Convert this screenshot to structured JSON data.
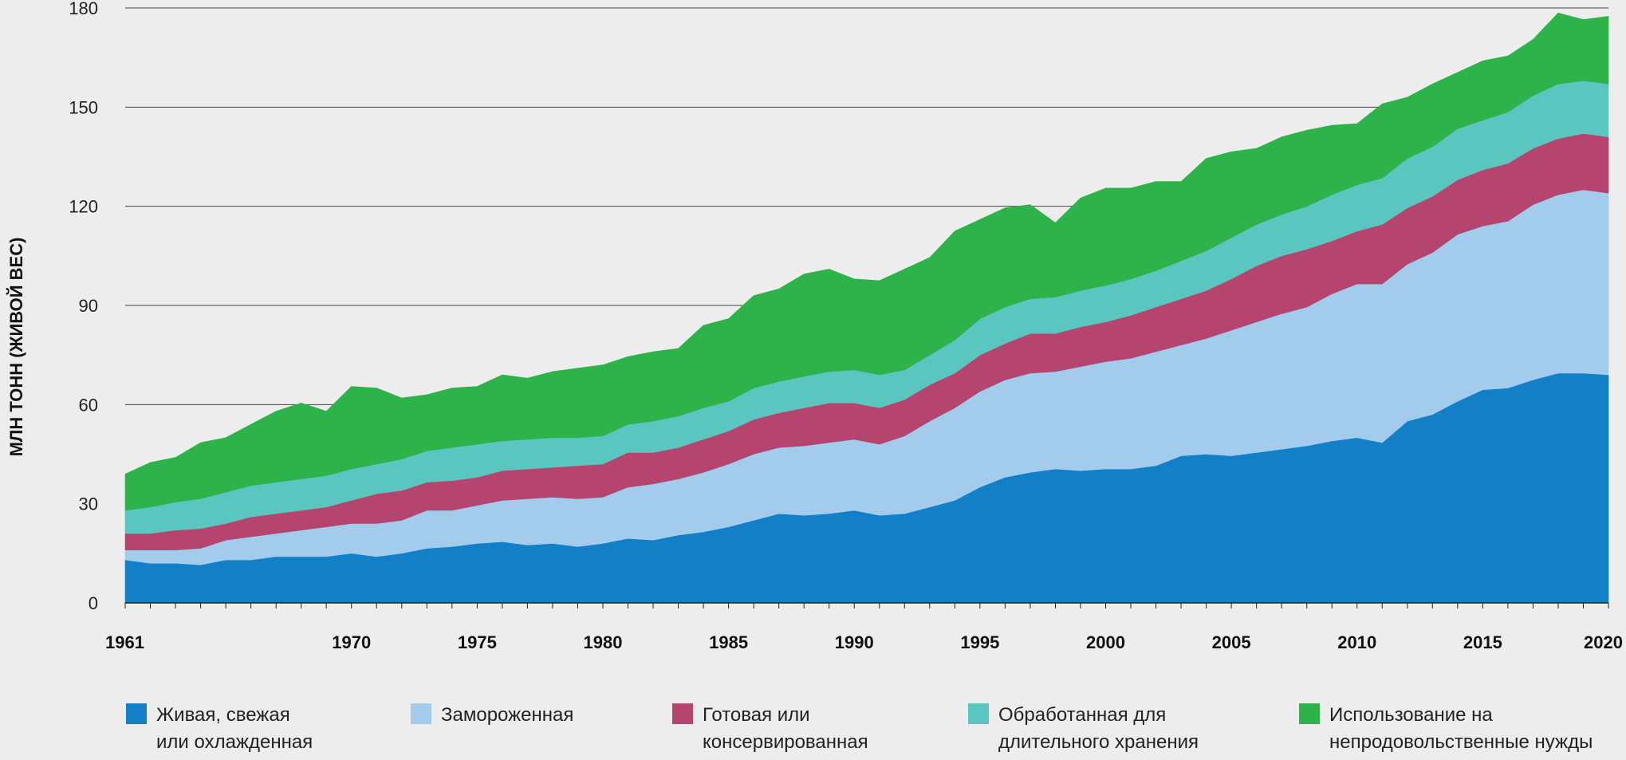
{
  "chart_data": {
    "type": "area",
    "stacked": true,
    "title": "",
    "xlabel": "",
    "ylabel": "МЛН ТОНН (ЖИВОЙ ВЕС)",
    "ylim": [
      0,
      180
    ],
    "yticks": [
      "0",
      "30",
      "60",
      "90",
      "120",
      "150",
      "180"
    ],
    "xticks": [
      "1961",
      "1970",
      "1975",
      "1980",
      "1985",
      "1990",
      "1995",
      "2000",
      "2005",
      "2010",
      "2015",
      "2020"
    ],
    "grid": true,
    "legend_position": "bottom",
    "x": [
      1961,
      1962,
      1963,
      1964,
      1965,
      1966,
      1967,
      1968,
      1969,
      1970,
      1971,
      1972,
      1973,
      1974,
      1975,
      1976,
      1977,
      1978,
      1979,
      1980,
      1981,
      1982,
      1983,
      1984,
      1985,
      1986,
      1987,
      1988,
      1989,
      1990,
      1991,
      1992,
      1993,
      1994,
      1995,
      1996,
      1997,
      1998,
      1999,
      2000,
      2001,
      2002,
      2003,
      2004,
      2005,
      2006,
      2007,
      2008,
      2009,
      2010,
      2011,
      2012,
      2013,
      2014,
      2015,
      2016,
      2017,
      2018,
      2019,
      2020
    ],
    "series": [
      {
        "name": "Живая, свежая или охлажденная",
        "legend_lines": [
          "Живая, свежая",
          "или охлажденная"
        ],
        "color": "#137fc6",
        "values": [
          13,
          12,
          12,
          11.5,
          13,
          13,
          14,
          14,
          14,
          15,
          14,
          15,
          16.5,
          17,
          18,
          18.5,
          17.5,
          18,
          17,
          18,
          19.5,
          19,
          20.5,
          21.5,
          23,
          25,
          27,
          26.5,
          27,
          28,
          26.5,
          27,
          29,
          31,
          35,
          38,
          39.5,
          40.5,
          40,
          40.5,
          40.5,
          41.5,
          44.5,
          45,
          44.5,
          45.5,
          46.5,
          47.5,
          49,
          50,
          48.5,
          55,
          57,
          61,
          64.5,
          65,
          67.5,
          69.5,
          69.5,
          69
        ]
      },
      {
        "name": "Замороженная",
        "legend_lines": [
          "Замороженная"
        ],
        "color": "#a3cbec",
        "values": [
          3,
          4,
          4,
          5,
          6,
          7,
          7,
          8,
          9,
          9,
          10,
          10,
          11.5,
          11,
          11.5,
          12.5,
          14,
          14,
          14.5,
          14,
          15.5,
          17,
          17,
          18,
          19,
          20,
          20,
          21,
          21.5,
          21.5,
          21.5,
          23.5,
          26,
          28,
          29,
          29.5,
          30,
          29.5,
          31.5,
          32.5,
          33.5,
          34.5,
          33.5,
          35,
          38,
          39.5,
          41,
          42,
          44.5,
          46.5,
          48,
          47.5,
          49,
          50.5,
          49.5,
          50.5,
          53,
          54,
          55.5,
          55
        ]
      },
      {
        "name": "Готовая или консервированная",
        "legend_lines": [
          "Готовая или",
          "консервированная"
        ],
        "color": "#b5446e",
        "values": [
          5,
          5,
          6,
          6,
          5,
          6,
          6,
          6,
          6,
          7,
          9,
          9,
          8.5,
          9,
          8.5,
          9,
          9,
          9,
          10,
          10,
          10.5,
          9.5,
          9.5,
          10,
          10,
          10.5,
          10.5,
          11.5,
          12,
          11,
          11,
          11,
          11,
          10.5,
          11,
          11,
          12,
          11.5,
          12,
          12,
          13,
          13.5,
          14,
          14.5,
          15.5,
          17,
          17.5,
          17.5,
          16,
          16,
          18,
          17,
          17,
          16.5,
          17,
          17.5,
          17,
          17,
          17,
          17
        ]
      },
      {
        "name": "Обработанная для длительного хранения",
        "legend_lines": [
          "Обработанная для",
          "длительного хранения"
        ],
        "color": "#5ac6c0",
        "values": [
          7,
          8,
          8.5,
          9,
          9.5,
          9.5,
          9.5,
          9.5,
          9.5,
          9.5,
          9,
          9.5,
          9.5,
          10,
          10,
          9,
          9,
          9,
          8.5,
          8.5,
          8.5,
          9.5,
          9.5,
          9.5,
          9,
          9.5,
          9.5,
          9.5,
          9.5,
          10,
          10,
          9,
          9,
          10,
          11,
          11,
          10.5,
          11,
          11,
          11,
          11,
          11,
          11.5,
          12,
          12.5,
          12.5,
          12.5,
          13,
          14,
          14,
          14,
          15,
          15,
          15.5,
          15,
          15.5,
          16,
          16.5,
          16,
          16
        ]
      },
      {
        "name": "Использование на непродовольственные нужды",
        "legend_lines": [
          "Использование на",
          "непродовольственные нужды"
        ],
        "color": "#2db34a",
        "values": [
          11,
          13.5,
          13.5,
          17,
          16.5,
          18.5,
          21.5,
          23,
          19.5,
          25,
          23,
          18.5,
          17,
          18,
          17.5,
          20,
          18.5,
          20,
          21,
          21.5,
          20.5,
          21,
          20.5,
          25,
          25,
          28,
          28,
          31,
          31,
          27.5,
          28.5,
          30.5,
          29.5,
          33,
          30,
          30,
          28.5,
          22.5,
          28,
          29.5,
          27.5,
          27,
          24,
          28,
          26,
          23,
          23.5,
          23,
          21,
          18.5,
          22.5,
          18.5,
          19,
          17,
          18,
          17,
          17,
          21.5,
          18.5,
          20.5
        ]
      }
    ]
  }
}
